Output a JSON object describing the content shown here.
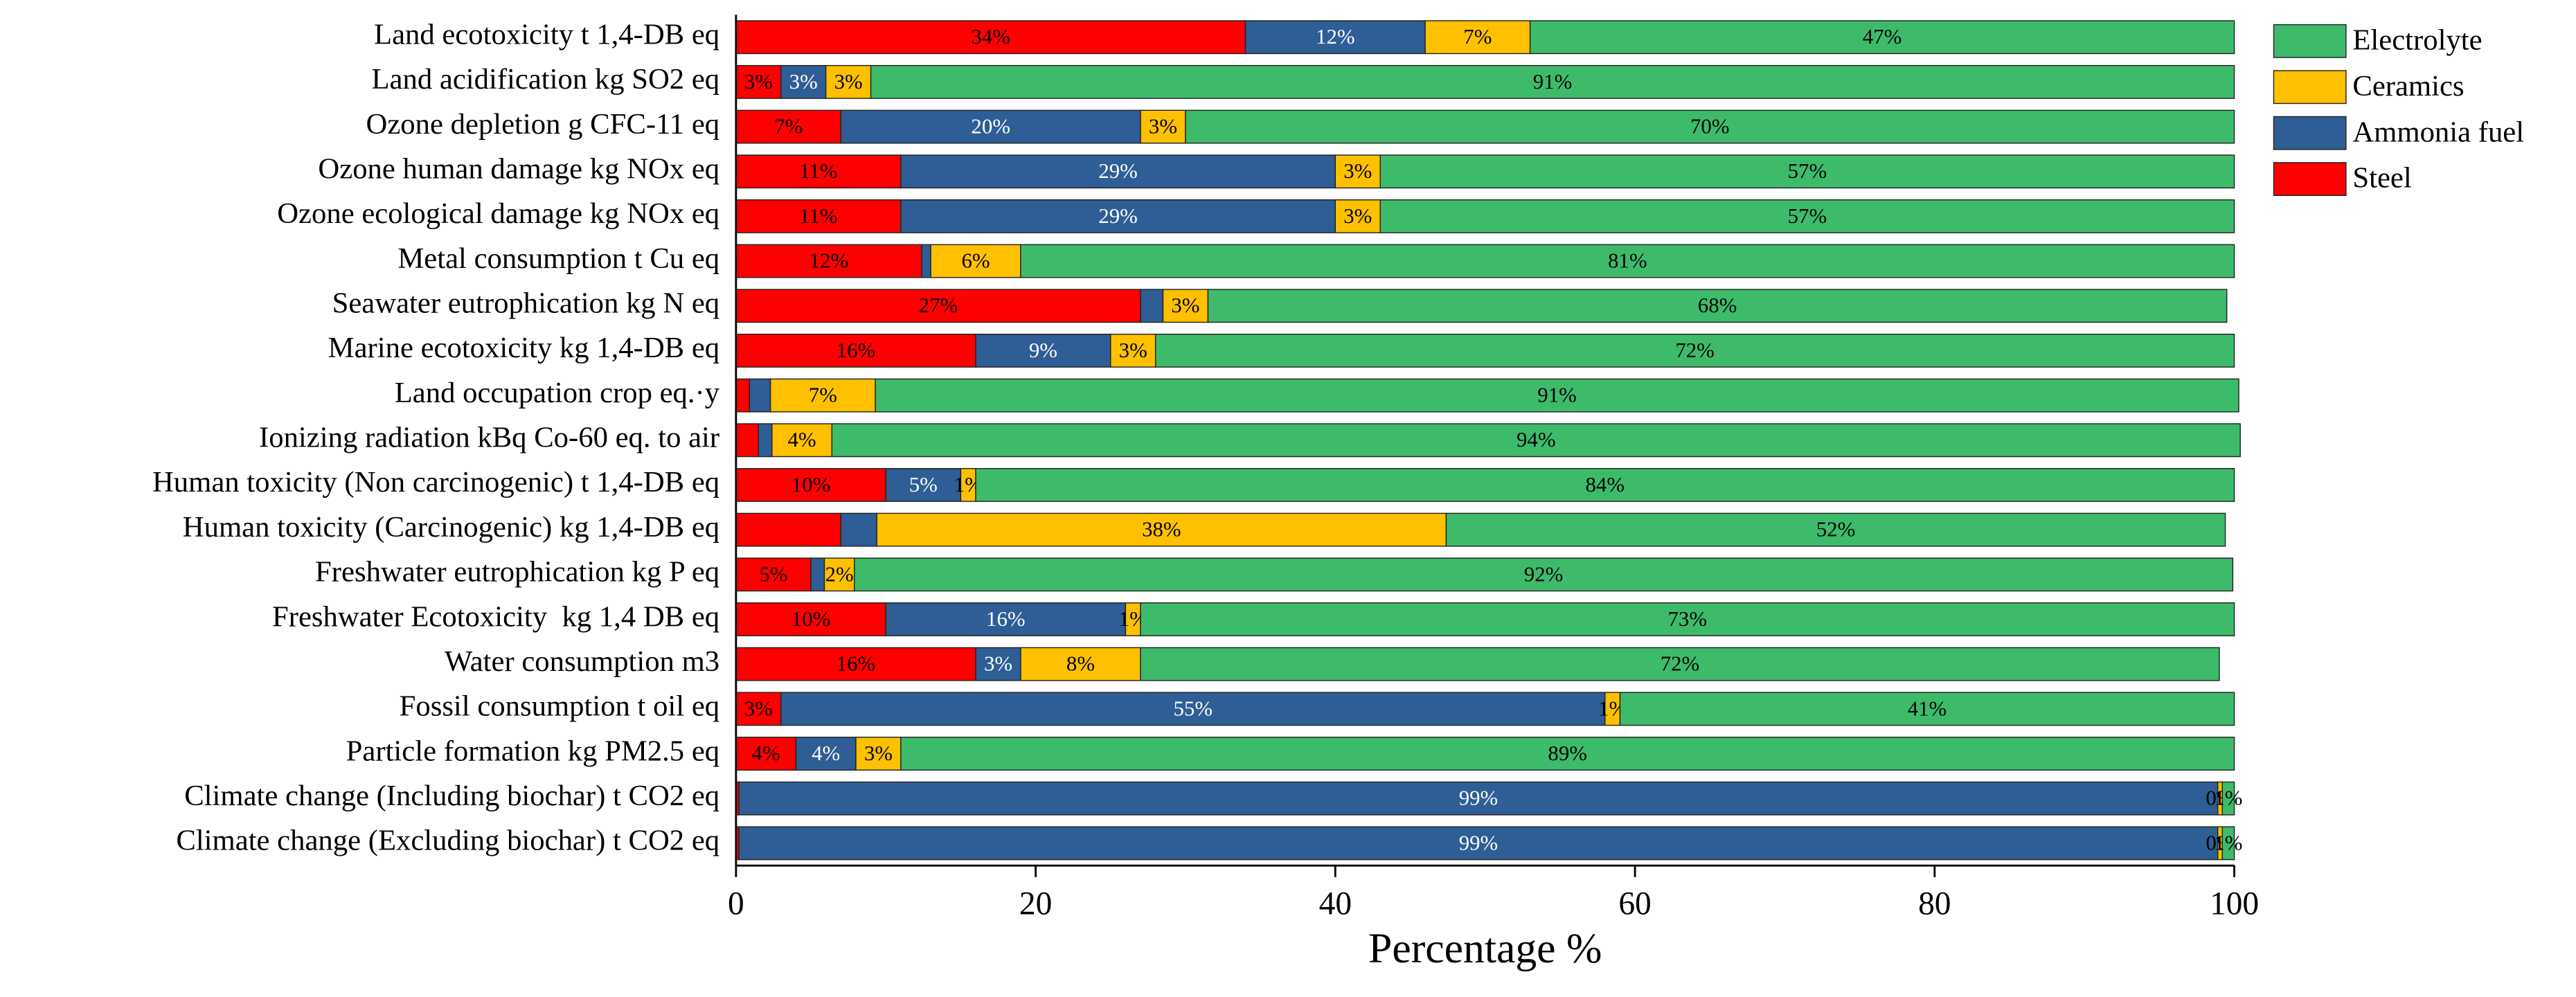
{
  "chart_data": {
    "type": "stacked_barh",
    "categories": [
      "Land ecotoxicity t 1,4-DB eq",
      "Land acidification kg SO2 eq",
      "Ozone depletion g CFC-11 eq",
      "Ozone human damage kg NOx eq",
      "Ozone ecological damage kg NOx eq",
      "Metal consumption t Cu eq",
      "Seawater eutrophication kg N eq",
      "Marine ecotoxicity kg 1,4-DB eq",
      "Land occupation crop eq.·y",
      "Ionizing radiation kBq Co-60 eq. to air",
      "Human toxicity (Non carcinogenic) t 1,4-DB eq",
      "Human toxicity (Carcinogenic) kg 1,4-DB eq",
      "Freshwater eutrophication kg P eq",
      "Freshwater Ecotoxicity  kg 1,4 DB eq",
      "Water consumption m3",
      "Fossil consumption t oil eq",
      "Particle formation kg PM2.5 eq",
      "Climate change (Including biochar) t CO2 eq",
      "Climate change (Excluding biochar) t CO2 eq"
    ],
    "series": [
      {
        "name": "Steel",
        "color": "#ff0000",
        "values": [
          34,
          3,
          7,
          11,
          11,
          12.4,
          27,
          16,
          0.9,
          1.5,
          10,
          7,
          5,
          10,
          16,
          3,
          4,
          0.2,
          0.2
        ],
        "value_labels": [
          "34%",
          "3%",
          "7%",
          "11%",
          "11%",
          "12%",
          "27%",
          "16%",
          null,
          null,
          "10%",
          null,
          "5%",
          "10%",
          "16%",
          "3%",
          "4%",
          null,
          null
        ]
      },
      {
        "name": "Ammonia fuel",
        "color": "#2e5e95",
        "values": [
          12,
          3,
          20,
          29,
          29,
          0.6,
          1.5,
          9,
          1.4,
          0.9,
          5,
          2.4,
          0.9,
          16,
          3,
          55,
          4,
          98.7,
          98.7
        ],
        "value_labels": [
          "12%",
          "3%",
          "20%",
          "29%",
          "29%",
          null,
          null,
          "9%",
          null,
          null,
          "5%",
          null,
          null,
          "16%",
          "3%",
          "55%",
          "4%",
          "99%",
          "99%"
        ]
      },
      {
        "name": "Ceramics",
        "color": "#ffc000",
        "values": [
          7,
          3,
          3,
          3,
          3,
          6,
          3,
          3,
          7,
          4,
          1,
          38,
          2,
          1,
          8,
          1,
          3,
          0.3,
          0.3
        ],
        "value_labels": [
          "7%",
          "3%",
          "3%",
          "3%",
          "3%",
          "6%",
          "3%",
          "3%",
          "7%",
          "4%",
          "1%",
          "38%",
          "2%",
          "1%",
          "8%",
          "1%",
          "3%",
          "0%",
          "0%"
        ]
      },
      {
        "name": "Electrolyte",
        "color": "#3dbb6b",
        "values": [
          47,
          91,
          70,
          57,
          57,
          81,
          68,
          72,
          91,
          94,
          84,
          52,
          92,
          73,
          72,
          41,
          89,
          0.8,
          0.8
        ],
        "value_labels": [
          "47%",
          "91%",
          "70%",
          "57%",
          "57%",
          "81%",
          "68%",
          "72%",
          "91%",
          "94%",
          "84%",
          "52%",
          "92%",
          "73%",
          "72%",
          "41%",
          "89%",
          "1%",
          "1%"
        ]
      }
    ],
    "xlabel": "Percentage %",
    "xlim": [
      0,
      100
    ],
    "xticks": [
      0,
      20,
      40,
      60,
      80,
      100
    ],
    "legend": "right"
  }
}
